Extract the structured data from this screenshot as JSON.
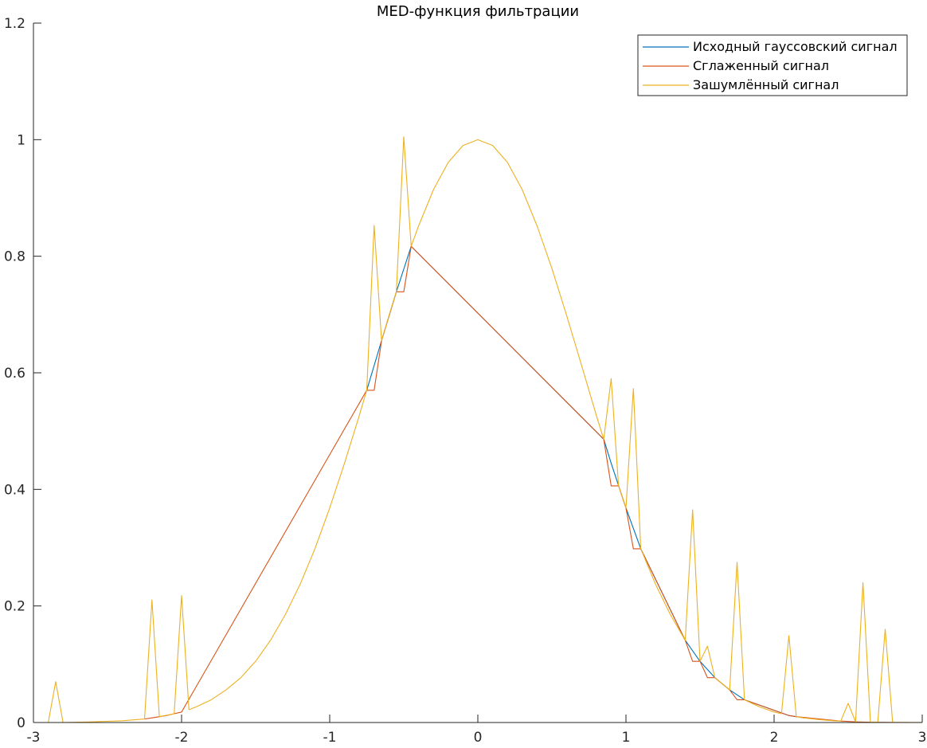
{
  "chart_data": {
    "type": "line",
    "title": "MED-функция фильтрации",
    "xlabel": "",
    "ylabel": "",
    "xlim": [
      -3,
      3
    ],
    "ylim": [
      0,
      1.2
    ],
    "x_ticks": [
      -3,
      -2,
      -1,
      0,
      1,
      2,
      3
    ],
    "x_tick_labels": [
      "-3",
      "-2",
      "-1",
      "0",
      "1",
      "2",
      "3"
    ],
    "y_ticks": [
      0,
      0.2,
      0.4,
      0.6,
      0.8,
      1,
      1.2
    ],
    "y_tick_labels": [
      "0",
      "0.2",
      "0.4",
      "0.6",
      "0.8",
      "1",
      "1.2"
    ],
    "grid": false,
    "legend_position": "top-right",
    "series": [
      {
        "name": "Исходный гауссовский сигнал",
        "color": "#0072BD",
        "x": [
          -0.75,
          -0.65,
          -0.55,
          -0.45,
          0.85,
          0.9,
          1.0,
          1.1,
          1.4,
          1.5,
          1.6,
          1.7,
          1.8,
          2.1,
          2.2
        ],
        "y": [
          0.57,
          0.655,
          0.739,
          0.817,
          0.486,
          0.445,
          0.368,
          0.298,
          0.141,
          0.105,
          0.077,
          0.056,
          0.039,
          0.012,
          0.008
        ]
      },
      {
        "name": "Сглаженный сигнал",
        "color": "#D95319",
        "x": [
          -2.25,
          -2.2,
          -2.1,
          -2.05,
          -2.0,
          -0.75,
          -0.7,
          -0.65,
          -0.55,
          -0.5,
          -0.45,
          0.85,
          0.9,
          0.95,
          1.0,
          1.05,
          1.1,
          1.4,
          1.45,
          1.5,
          1.55,
          1.6,
          1.7,
          1.75,
          1.8,
          2.1,
          2.15,
          2.45,
          2.55,
          2.65,
          2.75,
          2.8
        ],
        "y": [
          0.006,
          0.008,
          0.012,
          0.015,
          0.018,
          0.57,
          0.57,
          0.655,
          0.739,
          0.739,
          0.817,
          0.486,
          0.406,
          0.406,
          0.368,
          0.298,
          0.298,
          0.141,
          0.105,
          0.105,
          0.077,
          0.077,
          0.056,
          0.039,
          0.039,
          0.012,
          0.01,
          0.0025,
          0.0012,
          0.0005,
          0.0002,
          0.0001
        ]
      },
      {
        "name": "Зашумлённый сигнал",
        "color": "#EDB120",
        "x": [
          -2.9,
          -2.85,
          -2.8,
          -2.6,
          -2.4,
          -2.25,
          -2.2,
          -2.15,
          -2.05,
          -2.0,
          -1.95,
          -1.9,
          -1.8,
          -1.7,
          -1.6,
          -1.5,
          -1.4,
          -1.3,
          -1.2,
          -1.1,
          -1.0,
          -0.9,
          -0.8,
          -0.75,
          -0.7,
          -0.65,
          -0.6,
          -0.55,
          -0.5,
          -0.45,
          -0.4,
          -0.3,
          -0.2,
          -0.1,
          0.0,
          0.1,
          0.2,
          0.3,
          0.4,
          0.5,
          0.6,
          0.7,
          0.8,
          0.85,
          0.9,
          0.95,
          1.0,
          1.05,
          1.1,
          1.2,
          1.3,
          1.4,
          1.45,
          1.5,
          1.55,
          1.6,
          1.7,
          1.75,
          1.8,
          1.9,
          2.0,
          2.05,
          2.1,
          2.15,
          2.2,
          2.3,
          2.4,
          2.45,
          2.5,
          2.55,
          2.6,
          2.65,
          2.7,
          2.75,
          2.8,
          2.9,
          3.0
        ],
        "y": [
          0.0,
          0.07,
          0.0,
          0.0012,
          0.003,
          0.006,
          0.21,
          0.01,
          0.015,
          0.218,
          0.022,
          0.027,
          0.039,
          0.056,
          0.077,
          0.105,
          0.141,
          0.185,
          0.237,
          0.298,
          0.368,
          0.445,
          0.527,
          0.57,
          0.853,
          0.655,
          0.698,
          0.739,
          1.005,
          0.817,
          0.852,
          0.914,
          0.961,
          0.99,
          1.0,
          0.99,
          0.961,
          0.914,
          0.852,
          0.779,
          0.698,
          0.613,
          0.527,
          0.486,
          0.59,
          0.406,
          0.368,
          0.573,
          0.298,
          0.237,
          0.185,
          0.141,
          0.365,
          0.105,
          0.131,
          0.077,
          0.056,
          0.275,
          0.039,
          0.027,
          0.018,
          0.015,
          0.149,
          0.01,
          0.008,
          0.005,
          0.003,
          0.0025,
          0.033,
          0.0012,
          0.24,
          0.0009,
          0.0007,
          0.16,
          0.0004,
          0.0002,
          0.0001
        ]
      }
    ]
  }
}
